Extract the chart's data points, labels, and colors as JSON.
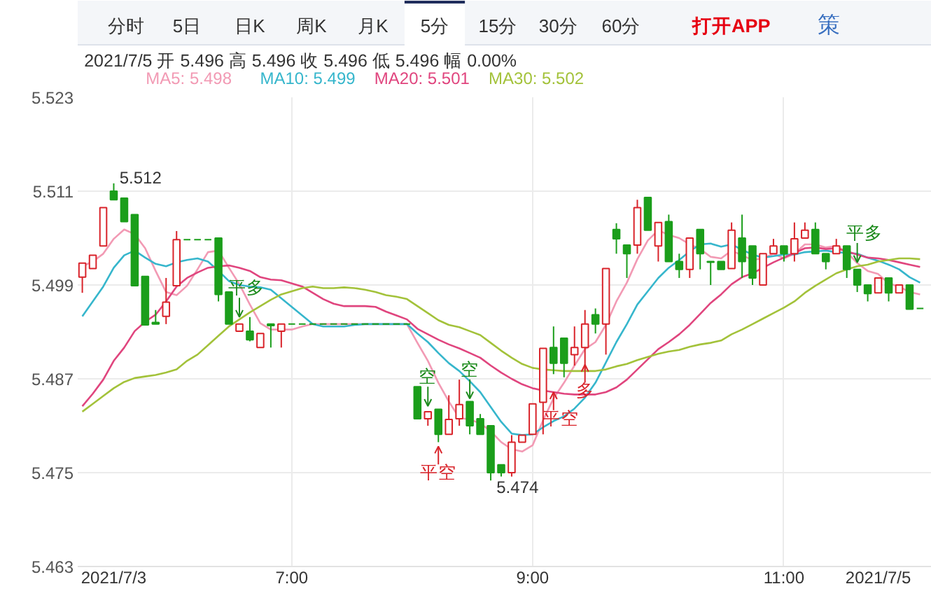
{
  "chart_data": {
    "type": "candlestick",
    "subtitle": "2021/7/5 开 5.496 高 5.496 收 5.496 低 5.496 幅 0.00%",
    "categories": [
      null,
      null,
      null,
      "2021/7/3",
      null,
      null,
      null,
      null,
      null,
      null,
      null,
      null,
      null,
      null,
      null,
      null,
      null,
      null,
      null,
      null,
      "7:00",
      null,
      null,
      null,
      null,
      null,
      null,
      null,
      null,
      null,
      null,
      null,
      null,
      null,
      null,
      null,
      null,
      null,
      null,
      null,
      null,
      null,
      null,
      "9:00",
      null,
      null,
      null,
      null,
      null,
      null,
      null,
      null,
      null,
      null,
      null,
      null,
      null,
      null,
      null,
      null,
      null,
      null,
      null,
      null,
      null,
      null,
      null,
      "11:00",
      null,
      null,
      null,
      null,
      null,
      null,
      null,
      null,
      "2021/7/5",
      null,
      null,
      null,
      null
    ],
    "ohlc": [
      [
        5.5,
        5.5018,
        5.498,
        5.5018
      ],
      [
        5.5011,
        5.5028,
        5.5011,
        5.5028
      ],
      [
        5.504,
        5.5089,
        5.504,
        5.5089
      ],
      [
        5.511,
        5.512,
        5.5099,
        5.5099
      ],
      [
        5.5101,
        5.5101,
        5.5071,
        5.5071
      ],
      [
        5.508,
        5.508,
        5.4989,
        5.4989
      ],
      [
        5.5001,
        5.5001,
        5.4939,
        5.4939
      ],
      [
        5.4942,
        5.4958,
        5.494,
        5.494
      ],
      [
        5.495,
        5.4999,
        5.494,
        5.4968
      ],
      [
        5.4989,
        5.5059,
        5.4989,
        5.5048
      ],
      [
        5.5048,
        5.5048,
        5.5048,
        5.5048
      ],
      [
        5.5048,
        5.5048,
        5.5048,
        5.5048
      ],
      [
        5.5048,
        5.5048,
        5.5048,
        5.5048
      ],
      [
        5.505,
        5.505,
        5.4969,
        5.4978
      ],
      [
        5.4981,
        5.4981,
        5.494,
        5.494
      ],
      [
        5.4931,
        5.494,
        5.4931,
        5.494
      ],
      [
        5.4931,
        5.4949,
        5.4918,
        5.492
      ],
      [
        5.491,
        5.4928,
        5.491,
        5.4928
      ],
      [
        5.494,
        5.494,
        5.491,
        5.4938
      ],
      [
        5.4931,
        5.494,
        5.491,
        5.494
      ],
      [
        5.494,
        5.494,
        5.494,
        5.494
      ],
      [
        5.494,
        5.494,
        5.494,
        5.494
      ],
      [
        5.494,
        5.494,
        5.494,
        5.494
      ],
      [
        5.494,
        5.494,
        5.494,
        5.494
      ],
      [
        5.494,
        5.494,
        5.494,
        5.494
      ],
      [
        5.494,
        5.494,
        5.494,
        5.494
      ],
      [
        5.494,
        5.494,
        5.494,
        5.494
      ],
      [
        5.494,
        5.494,
        5.494,
        5.494
      ],
      [
        5.494,
        5.494,
        5.494,
        5.494
      ],
      [
        5.494,
        5.494,
        5.494,
        5.494
      ],
      [
        5.494,
        5.494,
        5.494,
        5.494
      ],
      [
        5.494,
        5.494,
        5.494,
        5.494
      ],
      [
        5.486,
        5.486,
        5.4819,
        5.4819
      ],
      [
        5.4819,
        5.4828,
        5.481,
        5.4828
      ],
      [
        5.4831,
        5.4831,
        5.4789,
        5.4799
      ],
      [
        5.4799,
        5.4849,
        5.4799,
        5.4818
      ],
      [
        5.4819,
        5.4869,
        5.481,
        5.4837
      ],
      [
        5.4841,
        5.4841,
        5.4799,
        5.481
      ],
      [
        5.4819,
        5.4825,
        5.4799,
        5.4799
      ],
      [
        5.481,
        5.481,
        5.474,
        5.475
      ],
      [
        5.476,
        5.476,
        5.4745,
        5.475
      ],
      [
        5.475,
        5.4798,
        5.4745,
        5.4789
      ],
      [
        5.4789,
        5.4798,
        5.4789,
        5.4798
      ],
      [
        5.4799,
        5.4838,
        5.4799,
        5.4838
      ],
      [
        5.484,
        5.4909,
        5.4799,
        5.4909
      ],
      [
        5.491,
        5.4937,
        5.4876,
        5.489
      ],
      [
        5.4922,
        5.4922,
        5.4872,
        5.489
      ],
      [
        5.4901,
        5.4937,
        5.4887,
        5.491
      ],
      [
        5.491,
        5.4958,
        5.4881,
        5.494
      ],
      [
        5.4952,
        5.496,
        5.4928,
        5.494
      ],
      [
        5.494,
        5.5011,
        5.4901,
        5.5011
      ],
      [
        5.5061,
        5.5069,
        5.503,
        5.5049
      ],
      [
        5.5041,
        5.5041,
        5.4999,
        5.503
      ],
      [
        5.5041,
        5.5099,
        5.503,
        5.5089
      ],
      [
        5.5102,
        5.5102,
        5.506,
        5.506
      ],
      [
        5.504,
        5.507,
        5.502,
        5.507
      ],
      [
        5.5071,
        5.508,
        5.502,
        5.502
      ],
      [
        5.502,
        5.503,
        5.4999,
        5.501
      ],
      [
        5.501,
        5.505,
        5.4999,
        5.505
      ],
      [
        5.5061,
        5.5061,
        5.501,
        5.503
      ],
      [
        5.502,
        5.502,
        5.499,
        5.5019
      ],
      [
        5.502,
        5.502,
        5.501,
        5.501
      ],
      [
        5.5011,
        5.507,
        5.5011,
        5.506
      ],
      [
        5.505,
        5.508,
        5.4999,
        5.502
      ],
      [
        5.504,
        5.504,
        5.499,
        5.4999
      ],
      [
        5.499,
        5.503,
        5.499,
        5.503
      ],
      [
        5.503,
        5.5049,
        5.503,
        5.504
      ],
      [
        5.504,
        5.504,
        5.502,
        5.503
      ],
      [
        5.503,
        5.507,
        5.502,
        5.5049
      ],
      [
        5.505,
        5.507,
        5.505,
        5.506
      ],
      [
        5.5061,
        5.507,
        5.503,
        5.503
      ],
      [
        5.503,
        5.503,
        5.501,
        5.502
      ],
      [
        5.503,
        5.5049,
        5.503,
        5.504
      ],
      [
        5.504,
        5.504,
        5.4999,
        5.501
      ],
      [
        5.501,
        5.501,
        5.4981,
        5.499
      ],
      [
        5.499,
        5.499,
        5.4969,
        5.4979
      ],
      [
        5.498,
        5.4999,
        5.498,
        5.4999
      ],
      [
        5.4999,
        5.4999,
        5.4969,
        5.498
      ],
      [
        5.498,
        5.499,
        5.498,
        5.499
      ],
      [
        5.499,
        5.499,
        5.4959,
        5.4959
      ],
      [
        5.496,
        5.496,
        5.496,
        5.496
      ]
    ],
    "colors": [
      "#d9232a",
      "#d9232a",
      "#d9232a",
      "#1b9e1b",
      "#1b9e1b",
      "#1b9e1b",
      "#1b9e1b",
      "#1b9e1b",
      "#d9232a",
      "#d9232a",
      "#1b9e1b",
      "#1b9e1b",
      "#1b9e1b",
      "#1b9e1b",
      "#1b9e1b",
      "#d9232a",
      "#1b9e1b",
      "#d9232a",
      "#1b9e1b",
      "#d9232a",
      "#1b9e1b",
      "#1b9e1b",
      "#1b9e1b",
      "#1b9e1b",
      "#1b9e1b",
      "#1b9e1b",
      "#1b9e1b",
      "#1b9e1b",
      "#1b9e1b",
      "#1b9e1b",
      "#1b9e1b",
      "#1b9e1b",
      "#1b9e1b",
      "#d9232a",
      "#1b9e1b",
      "#d9232a",
      "#d9232a",
      "#1b9e1b",
      "#1b9e1b",
      "#1b9e1b",
      "#1b9e1b",
      "#d9232a",
      "#d9232a",
      "#d9232a",
      "#d9232a",
      "#1b9e1b",
      "#1b9e1b",
      "#d9232a",
      "#d9232a",
      "#1b9e1b",
      "#d9232a",
      "#1b9e1b",
      "#1b9e1b",
      "#d9232a",
      "#1b9e1b",
      "#d9232a",
      "#1b9e1b",
      "#1b9e1b",
      "#d9232a",
      "#1b9e1b",
      "#1b9e1b",
      "#1b9e1b",
      "#d9232a",
      "#1b9e1b",
      "#1b9e1b",
      "#d9232a",
      "#d9232a",
      "#1b9e1b",
      "#d9232a",
      "#d9232a",
      "#1b9e1b",
      "#1b9e1b",
      "#d9232a",
      "#1b9e1b",
      "#1b9e1b",
      "#1b9e1b",
      "#d9232a",
      "#1b9e1b",
      "#d9232a",
      "#1b9e1b",
      "#1b9e1b"
    ],
    "series": [
      {
        "type": "line",
        "name": "MA5: 5.498",
        "color": "#f29ab4",
        "values": [
          5.5014,
          5.502,
          5.503,
          5.5049,
          5.5061,
          5.5055,
          5.5037,
          5.5008,
          5.4981,
          5.4977,
          5.4989,
          5.501,
          5.5032,
          5.5034,
          5.5012,
          5.4991,
          5.4965,
          5.4941,
          5.4933,
          5.4933,
          5.4933,
          5.4937,
          5.494,
          5.494,
          5.494,
          5.494,
          5.494,
          5.494,
          5.494,
          5.494,
          5.494,
          5.494,
          5.4916,
          5.4893,
          5.4865,
          5.4841,
          5.482,
          5.4818,
          5.4813,
          5.4803,
          5.4789,
          5.478,
          5.4777,
          5.4785,
          5.4817,
          5.4845,
          5.4865,
          5.4887,
          5.4908,
          5.4917,
          5.4939,
          5.4969,
          5.4993,
          5.5023,
          5.5047,
          5.506,
          5.5054,
          5.505,
          5.5042,
          5.5036,
          5.5026,
          5.5024,
          5.5034,
          5.5028,
          5.5022,
          5.5024,
          5.503,
          5.5024,
          5.503,
          5.5042,
          5.5042,
          5.5038,
          5.504,
          5.5032,
          5.5018,
          5.5008,
          5.5004,
          5.4992,
          5.4988,
          5.4981,
          5.4978
        ]
      },
      {
        "type": "line",
        "name": "MA10: 5.499",
        "color": "#36b6cc",
        "values": [
          5.495,
          5.4969,
          5.4988,
          5.5012,
          5.5028,
          5.5034,
          5.5025,
          5.5017,
          5.5014,
          5.5019,
          5.5022,
          5.5024,
          5.502,
          5.5008,
          5.4995,
          5.499,
          5.4988,
          5.4987,
          5.4984,
          5.4973,
          5.4962,
          5.4951,
          5.494,
          5.4937,
          5.4937,
          5.4937,
          5.4939,
          5.494,
          5.494,
          5.494,
          5.494,
          5.494,
          5.4928,
          5.4917,
          5.4903,
          5.489,
          5.488,
          5.4867,
          5.4853,
          5.4834,
          5.4815,
          5.48,
          5.4798,
          5.4799,
          5.4808,
          5.4816,
          5.4822,
          5.4832,
          5.4846,
          5.4865,
          5.4891,
          5.4917,
          5.494,
          5.4965,
          5.4982,
          5.4999,
          5.5012,
          5.5022,
          5.5033,
          5.5042,
          5.5043,
          5.5039,
          5.5042,
          5.5035,
          5.5029,
          5.5025,
          5.5027,
          5.5029,
          5.5029,
          5.5032,
          5.5033,
          5.5034,
          5.5032,
          5.5031,
          5.503,
          5.5025,
          5.5021,
          5.5016,
          5.501,
          5.5,
          5.4993
        ]
      },
      {
        "type": "line",
        "name": "MA20: 5.501",
        "color": "#e0457e",
        "values": [
          5.4835,
          5.4851,
          5.4869,
          5.4893,
          5.491,
          5.4931,
          5.4943,
          5.4952,
          5.4969,
          5.4988,
          5.4999,
          5.5006,
          5.5012,
          5.5014,
          5.5015,
          5.5012,
          5.5008,
          5.5,
          5.4997,
          5.4996,
          5.4992,
          5.4988,
          5.498,
          5.4972,
          5.4966,
          5.4963,
          5.4963,
          5.4963,
          5.4962,
          5.4956,
          5.4951,
          5.4946,
          5.4934,
          5.4927,
          5.492,
          5.4914,
          5.4909,
          5.4903,
          5.4897,
          5.4887,
          5.4878,
          5.487,
          5.4863,
          5.4858,
          5.4855,
          5.4853,
          5.4851,
          5.485,
          5.485,
          5.485,
          5.4853,
          5.4859,
          5.4869,
          5.4882,
          5.4895,
          5.4908,
          5.4917,
          5.4927,
          5.4939,
          5.4953,
          5.4967,
          5.4978,
          5.4991,
          5.5,
          5.5005,
          5.5012,
          5.5019,
          5.5025,
          5.5031,
          5.5037,
          5.5038,
          5.5036,
          5.5037,
          5.5033,
          5.5029,
          5.5025,
          5.5024,
          5.5022,
          5.5019,
          5.5016,
          5.5013
        ]
      },
      {
        "type": "line",
        "name": "MA30: 5.502",
        "color": "#a3c23a",
        "values": [
          5.4828,
          5.4838,
          5.4848,
          5.4858,
          5.4866,
          5.4871,
          5.4873,
          5.4875,
          5.4878,
          5.4882,
          5.4893,
          5.4901,
          5.4913,
          5.4925,
          5.4937,
          5.4946,
          5.4955,
          5.4963,
          5.4971,
          5.4978,
          5.4982,
          5.4986,
          5.4988,
          5.4986,
          5.4986,
          5.4987,
          5.4986,
          5.4984,
          5.4981,
          5.4977,
          5.4975,
          5.4972,
          5.4963,
          5.4954,
          5.4945,
          5.4939,
          5.4936,
          5.4931,
          5.4926,
          5.4916,
          5.4906,
          5.4897,
          5.4889,
          5.4884,
          5.4882,
          5.4881,
          5.488,
          5.488,
          5.488,
          5.488,
          5.4882,
          5.4886,
          5.4889,
          5.4894,
          5.4898,
          5.4902,
          5.4905,
          5.4907,
          5.4911,
          5.4914,
          5.4916,
          5.4919,
          5.4927,
          5.4933,
          5.494,
          5.4947,
          5.4954,
          5.4961,
          5.4969,
          5.498,
          5.4989,
          5.4997,
          5.5005,
          5.501,
          5.5014,
          5.5016,
          5.502,
          5.5022,
          5.5024,
          5.5024,
          5.5023
        ]
      }
    ],
    "ylim": [
      5.463,
      5.523
    ],
    "yticks": [
      5.463,
      5.475,
      5.487,
      5.499,
      5.511,
      5.523
    ],
    "grid": true,
    "legend": "top left",
    "annotations": [
      "分时",
      "5日",
      "日K",
      "周K",
      "月K",
      "5分",
      "15分",
      "30分",
      "60分",
      "打开APP",
      "策",
      "5.512",
      "5.474",
      "平多",
      "空",
      "平空",
      "空",
      "平空",
      "多",
      "平多"
    ]
  }
}
